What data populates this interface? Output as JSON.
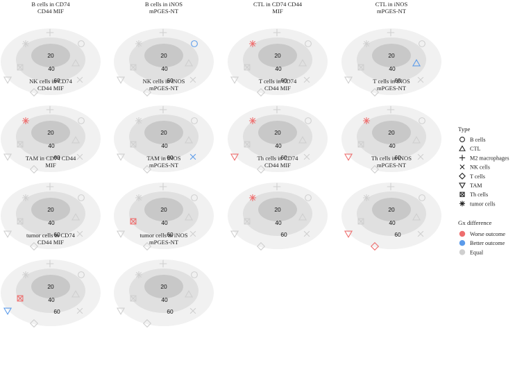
{
  "chart_data": {
    "type": "radial-categorical",
    "ring_labels": [
      "20",
      "40",
      "60"
    ],
    "legend": {
      "type_title": "Type",
      "types": [
        {
          "name": "B cells",
          "symbol": "circle"
        },
        {
          "name": "CTL",
          "symbol": "triangle-up"
        },
        {
          "name": "M2 macrophages",
          "symbol": "plus"
        },
        {
          "name": "NK cells",
          "symbol": "cross"
        },
        {
          "name": "T cells",
          "symbol": "diamond"
        },
        {
          "name": "TAM",
          "symbol": "triangle-down"
        },
        {
          "name": "Th cells",
          "symbol": "box-x"
        },
        {
          "name": "tumor cells",
          "symbol": "asterisk"
        }
      ],
      "gx_title": "Gx difference",
      "gx": [
        {
          "name": "Worse outcome",
          "color": "#ee6e6e",
          "key": "worse"
        },
        {
          "name": "Better outcome",
          "color": "#5b9bea",
          "key": "better"
        },
        {
          "name": "Equal",
          "color": "#cfcfcf",
          "key": "equal"
        }
      ]
    },
    "panels": [
      {
        "title": [
          "B cells in CD74",
          "CD44 MIF"
        ],
        "highlight": {}
      },
      {
        "title": [
          "B cells in iNOS",
          "mPGES-NT"
        ],
        "highlight": {
          "B cells": "better"
        }
      },
      {
        "title": [
          "CTL in CD74 CD44",
          "MIF"
        ],
        "highlight": {
          "tumor cells": "worse"
        }
      },
      {
        "title": [
          "CTL in iNOS",
          "mPGES-NT"
        ],
        "highlight": {
          "CTL": "better"
        }
      },
      {
        "title": [
          "NK cells in CD74",
          "CD44 MIF"
        ],
        "highlight": {
          "tumor cells": "worse"
        }
      },
      {
        "title": [
          "NK cells in iNOS",
          "mPGES-NT"
        ],
        "highlight": {
          "NK cells": "better"
        }
      },
      {
        "title": [
          "T cells in CD74",
          "CD44 MIF"
        ],
        "highlight": {
          "TAM": "worse",
          "tumor cells": "worse"
        }
      },
      {
        "title": [
          "T cells in iNOS",
          "mPGES-NT"
        ],
        "highlight": {
          "TAM": "worse",
          "tumor cells": "worse"
        }
      },
      {
        "title": [
          "TAM in CD74 CD44",
          "MIF"
        ],
        "highlight": {}
      },
      {
        "title": [
          "TAM in iNOS",
          "mPGES-NT"
        ],
        "highlight": {
          "Th cells": "worse"
        }
      },
      {
        "title": [
          "Th cells in CD74",
          "CD44 MIF"
        ],
        "highlight": {
          "tumor cells": "worse"
        }
      },
      {
        "title": [
          "Th cells in iNOS",
          "mPGES-NT"
        ],
        "highlight": {
          "TAM": "worse",
          "T cells": "worse"
        }
      },
      {
        "title": [
          "tumor cells in CD74",
          "CD44 MIF"
        ],
        "highlight": {
          "Th cells": "worse",
          "TAM": "better"
        }
      },
      {
        "title": [
          "tumor cells in iNOS",
          "mPGES-NT"
        ],
        "highlight": {}
      }
    ]
  }
}
